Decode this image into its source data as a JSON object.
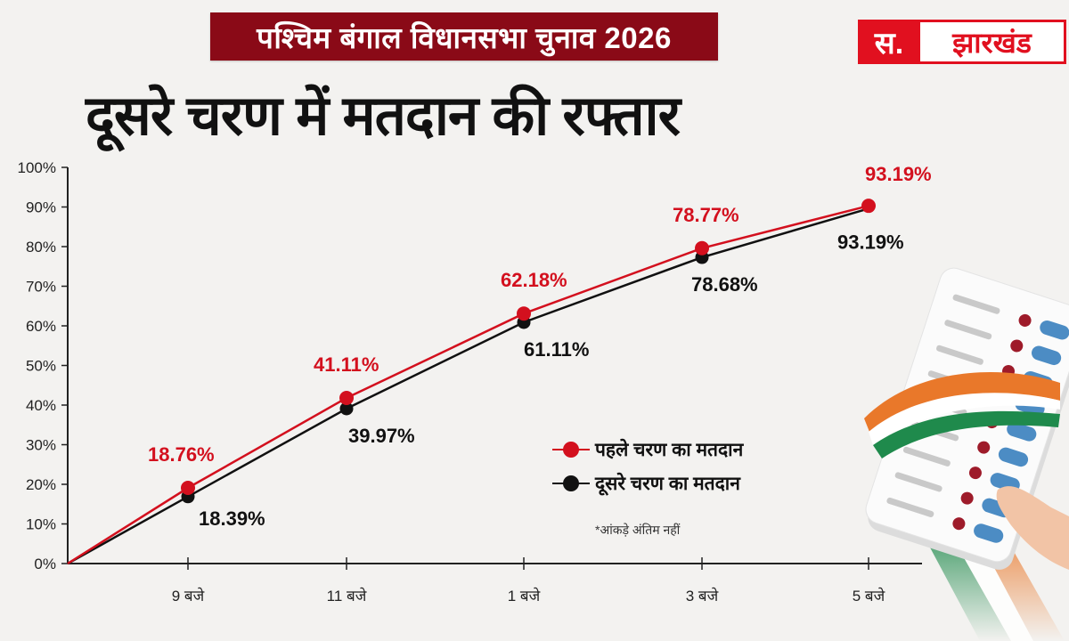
{
  "header": {
    "banner": "पश्चिम बंगाल विधानसभा चुनाव 2026",
    "logo_prefix": "स.",
    "logo_name": "झारखंड",
    "headline": "दूसरे चरण में मतदान की रफ्तार"
  },
  "colors": {
    "banner_bg": "#8a0a17",
    "logo_red": "#e1101f",
    "series_red": "#d3101e",
    "series_black": "#111111",
    "background": "#f3f2f0"
  },
  "legend": {
    "items": [
      {
        "label": "पहले चरण का मतदान",
        "color": "#d3101e"
      },
      {
        "label": "दूसरे चरण का मतदान",
        "color": "#111111"
      }
    ]
  },
  "note": "*आंकड़े अंतिम नहीं",
  "chart_data": {
    "type": "line",
    "title": "दूसरे चरण में मतदान की रफ्तार",
    "xlabel": "",
    "ylabel": "",
    "ylim": [
      0,
      100
    ],
    "yticks": [
      "0%",
      "10%",
      "20%",
      "30%",
      "40%",
      "50%",
      "60%",
      "70%",
      "80%",
      "90%",
      "100%"
    ],
    "categories": [
      "9 बजे",
      "11 बजे",
      "1 बजे",
      "3 बजे",
      "5 बजे"
    ],
    "origin": {
      "x_label": "",
      "value": 0
    },
    "legend_position": "center-right",
    "grid": false,
    "series": [
      {
        "name": "पहले चरण का मतदान",
        "color": "#d3101e",
        "labels": [
          "18.76%",
          "41.11%",
          "62.18%",
          "78.77%",
          "93.19%"
        ],
        "values": [
          18.76,
          41.11,
          62.18,
          78.77,
          93.19
        ],
        "plotted": [
          19.1,
          41.8,
          63.1,
          79.6,
          90.3
        ]
      },
      {
        "name": "दूसरे चरण का मतदान",
        "color": "#111111",
        "labels": [
          "18.39%",
          "39.97%",
          "61.11%",
          "78.68%",
          "93.19%"
        ],
        "values": [
          18.39,
          39.97,
          61.11,
          78.68,
          93.19
        ],
        "plotted": [
          16.9,
          39.1,
          60.9,
          77.3,
          89.6
        ]
      }
    ]
  }
}
